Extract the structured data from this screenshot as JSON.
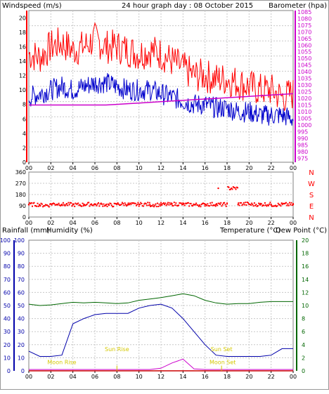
{
  "colors": {
    "windspeed": "#ff0000",
    "gust": "#ff0000",
    "wind_avg": "#0000cc",
    "barometer": "#cc00cc",
    "direction": "#ff0000",
    "humidity": "#0000aa",
    "rainfall": "#cc0000",
    "temperature": "#006600",
    "dewpoint": "#cc00cc",
    "sun": "#d4c800"
  },
  "chart_data": [
    {
      "type": "line",
      "title": "24 hour graph day : 08 October 2015",
      "ylabel": "Windspeed (m/s)",
      "y2label": "Barometer (hpa)",
      "xlabel": "",
      "x_tick_labels": [
        "00",
        "02",
        "04",
        "06",
        "08",
        "10",
        "12",
        "14",
        "16",
        "18",
        "20",
        "22",
        "00"
      ],
      "ylim": [
        0,
        21
      ],
      "y_ticks": [
        0,
        2,
        4,
        6,
        8,
        10,
        12,
        14,
        16,
        18,
        20
      ],
      "y2lim": [
        972,
        1086
      ],
      "y2_ticks": [
        975,
        980,
        985,
        990,
        995,
        1000,
        1005,
        1010,
        1015,
        1020,
        1025,
        1030,
        1035,
        1040,
        1045,
        1050,
        1055,
        1060,
        1065,
        1070,
        1075,
        1080,
        1085
      ],
      "grid": true,
      "x": [
        0,
        1,
        2,
        3,
        4,
        5,
        6,
        7,
        8,
        9,
        10,
        11,
        12,
        13,
        14,
        15,
        16,
        17,
        18,
        19,
        20,
        21,
        22,
        23,
        24
      ],
      "series": [
        {
          "name": "gust",
          "axis": "left",
          "values": [
            15,
            14.5,
            16,
            16.5,
            15.5,
            16,
            17,
            16,
            16,
            15.5,
            15,
            15.5,
            15,
            14,
            13,
            12,
            12,
            11.5,
            11.5,
            11,
            10.5,
            10,
            10,
            9,
            9.5
          ]
        },
        {
          "name": "average",
          "axis": "left",
          "values": [
            9,
            9.5,
            10,
            10.5,
            10,
            10.5,
            11,
            11,
            10.5,
            10,
            10,
            10,
            9.5,
            9,
            8.5,
            8,
            8,
            7.5,
            7.5,
            7,
            7,
            6.5,
            6.5,
            6.5,
            6
          ]
        },
        {
          "name": "barometer",
          "axis": "right",
          "values": [
            1015,
            1015,
            1015,
            1015,
            1015,
            1015,
            1015,
            1015,
            1015.5,
            1016,
            1016.5,
            1017,
            1017.5,
            1018,
            1018.5,
            1019,
            1019.5,
            1020,
            1020.5,
            1021,
            1021.5,
            1022,
            1022.5,
            1023,
            1023.5
          ]
        }
      ]
    },
    {
      "type": "scatter",
      "title": "",
      "ylabel": "",
      "y_tick_labels": [
        "360",
        "270",
        "180",
        "90",
        "0"
      ],
      "y2_tick_labels": [
        "N",
        "W",
        "S",
        "E",
        "N"
      ],
      "ylim": [
        0,
        360
      ],
      "x_tick_labels": [
        "00",
        "02",
        "04",
        "06",
        "08",
        "10",
        "12",
        "14",
        "16",
        "18",
        "20",
        "22",
        "00"
      ],
      "grid": true,
      "series": [
        {
          "name": "direction",
          "x": [
            0,
            1,
            2,
            3,
            4,
            5,
            6,
            7,
            8,
            9,
            10,
            11,
            12,
            13,
            14,
            15,
            16,
            17,
            17.2,
            18,
            19,
            20,
            21,
            22,
            23,
            24
          ],
          "values": [
            100,
            95,
            105,
            100,
            98,
            102,
            100,
            96,
            104,
            100,
            102,
            98,
            100,
            104,
            100,
            98,
            102,
            100,
            230,
            105,
            100,
            102,
            98,
            100,
            104,
            100
          ]
        }
      ]
    },
    {
      "type": "line",
      "title": "",
      "ylabel": "Rainfall (mm)",
      "y2label": "Humidity (%)",
      "y3label": "Temperature (°C)",
      "y4label": "Dew Point (°C)",
      "ylim": [
        0,
        100
      ],
      "y_ticks": [
        0,
        10,
        20,
        30,
        40,
        50,
        60,
        70,
        80,
        90,
        100
      ],
      "y_right_lim": [
        0,
        20
      ],
      "y_right_ticks": [
        0,
        2,
        4,
        6,
        8,
        10,
        12,
        14,
        16,
        18,
        20
      ],
      "x_tick_labels": [
        "00",
        "02",
        "04",
        "06",
        "08",
        "10",
        "12",
        "14",
        "16",
        "18",
        "20",
        "22",
        "00"
      ],
      "grid": true,
      "annotations": [
        "Sun Rise",
        "Sun Set",
        "Moon Rise",
        "Moon Set"
      ],
      "x": [
        0,
        1,
        2,
        3,
        4,
        5,
        6,
        7,
        8,
        9,
        10,
        11,
        12,
        13,
        14,
        15,
        16,
        17,
        18,
        19,
        20,
        21,
        22,
        23,
        24
      ],
      "series": [
        {
          "name": "humidity",
          "axis": "left",
          "values": [
            15,
            11,
            11,
            12,
            36,
            40,
            43,
            44,
            44,
            44,
            48,
            50,
            51,
            48,
            40,
            30,
            20,
            12,
            11,
            11,
            11,
            11,
            12,
            17,
            17
          ]
        },
        {
          "name": "rainfall",
          "axis": "left",
          "values": [
            0,
            0,
            0,
            0,
            0,
            0,
            0,
            0,
            0,
            0,
            0,
            0,
            0,
            0,
            0,
            0,
            0,
            0,
            0,
            0,
            0,
            0,
            0,
            0,
            0
          ]
        },
        {
          "name": "temperature",
          "axis": "right",
          "values": [
            10.2,
            10,
            10.1,
            10.3,
            10.5,
            10.4,
            10.5,
            10.4,
            10.3,
            10.4,
            10.8,
            11,
            11.2,
            11.5,
            11.8,
            11.5,
            10.8,
            10.4,
            10.2,
            10.3,
            10.3,
            10.5,
            10.6,
            10.6,
            10.6
          ]
        },
        {
          "name": "dewpoint",
          "axis": "right",
          "values": [
            0.2,
            0.2,
            0.2,
            0.2,
            0.2,
            0.2,
            0.2,
            0.2,
            0.2,
            0.2,
            0.2,
            0.2,
            0.4,
            1.2,
            1.8,
            0.3,
            0.2,
            0.2,
            0.2,
            0.2,
            0.2,
            0.2,
            0.2,
            0.2,
            0.2
          ]
        }
      ]
    }
  ]
}
